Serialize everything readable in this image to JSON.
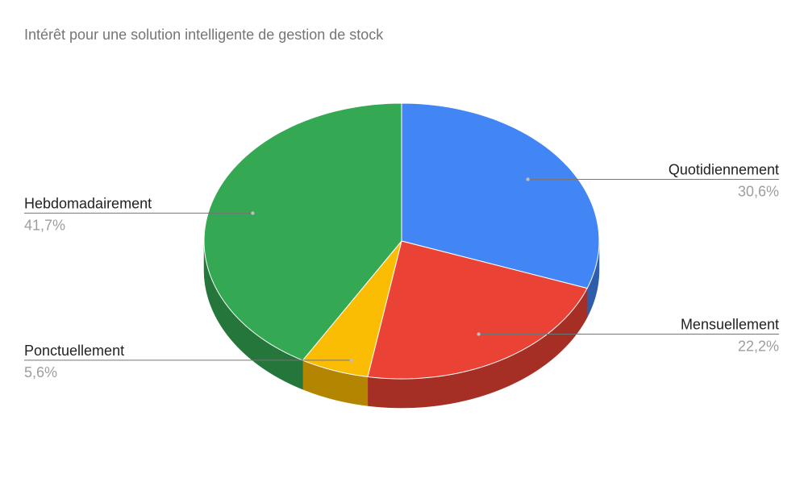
{
  "chart_data": {
    "type": "pie",
    "title": "Intérêt pour une solution intelligente de gestion de stock",
    "three_d": true,
    "slices": [
      {
        "label": "Quotidiennement",
        "value_label": "30,6%",
        "value": 30.6,
        "color": "#4285F4",
        "side_color": "#2F5DAB"
      },
      {
        "label": "Mensuellement",
        "value_label": "22,2%",
        "value": 22.2,
        "color": "#EA4335",
        "side_color": "#A62F25"
      },
      {
        "label": "Ponctuellement",
        "value_label": "5,6%",
        "value": 5.6,
        "color": "#FBBC04",
        "side_color": "#B38500"
      },
      {
        "label": "Hebdomadairement",
        "value_label": "41,7%",
        "value": 41.7,
        "color": "#34A853",
        "side_color": "#24763A"
      }
    ],
    "start_angle": "12 o'clock",
    "direction": "clockwise"
  }
}
